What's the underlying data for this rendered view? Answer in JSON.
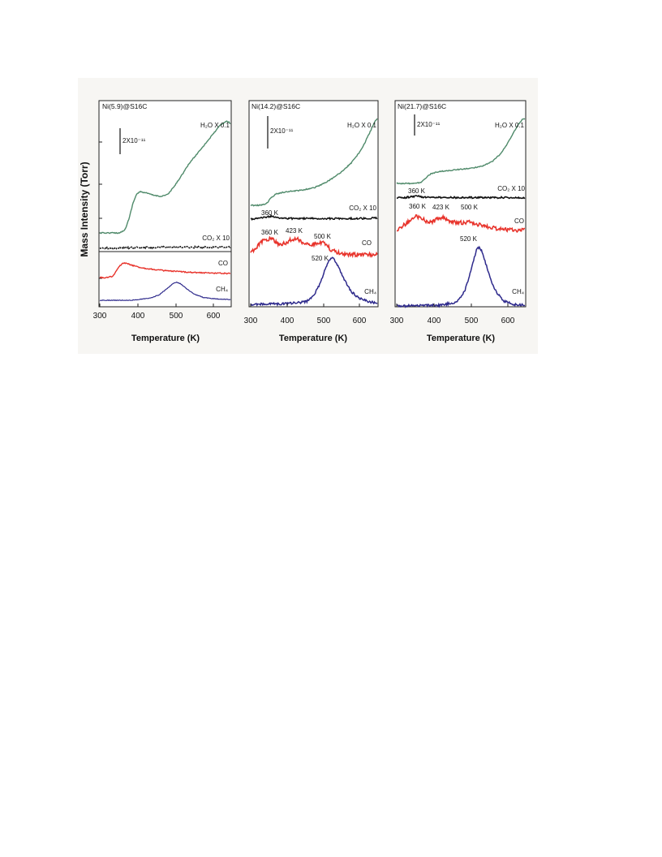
{
  "figure": {
    "ylabel": "Mass Intensity  (Torr)",
    "background": "#f7f6f3"
  },
  "chart_data": [
    {
      "type": "line",
      "title": "Ni(5.9)@S16C",
      "xlabel": "Temperature (K)",
      "xlim": [
        300,
        640
      ],
      "xticks": [
        "300",
        "400",
        "500",
        "600"
      ],
      "scalebar": "2X10⁻¹¹",
      "series": [
        {
          "name": "H₂O X 0.1",
          "color": "#4f8a6a",
          "x": [
            300,
            330,
            352,
            366,
            376,
            386,
            396,
            405,
            420,
            440,
            460,
            478,
            495,
            515,
            535,
            555,
            575,
            595,
            612,
            625,
            632,
            640
          ],
          "y": [
            0,
            0,
            0,
            0.3,
            1.2,
            2.5,
            3.3,
            3.5,
            3.4,
            3.2,
            3.1,
            3.3,
            4.0,
            5.0,
            6.0,
            6.8,
            7.6,
            8.4,
            9.1,
            9.4,
            9.5,
            9.3
          ]
        },
        {
          "name": "CO₂ X 10",
          "color": "#111111",
          "x": [
            300,
            350,
            400,
            450,
            500,
            550,
            600,
            640
          ],
          "y": [
            0,
            0.05,
            0.1,
            0.15,
            0.15,
            0.15,
            0.15,
            0.15
          ]
        },
        {
          "name": "CO",
          "color": "#e8342c",
          "x": [
            300,
            320,
            335,
            348,
            358,
            366,
            378,
            392,
            410,
            440,
            480,
            520,
            560,
            600,
            640
          ],
          "y": [
            0,
            0,
            0.2,
            1.2,
            1.7,
            1.8,
            1.6,
            1.4,
            1.2,
            1.0,
            0.8,
            0.7,
            0.6,
            0.55,
            0.5
          ]
        },
        {
          "name": "CH₄",
          "color": "#2e2a8c",
          "x": [
            300,
            380,
            430,
            455,
            475,
            490,
            500,
            510,
            525,
            545,
            570,
            600,
            640
          ],
          "y": [
            0,
            0,
            0.15,
            0.4,
            0.85,
            1.2,
            1.3,
            1.2,
            0.85,
            0.45,
            0.2,
            0.1,
            0.05
          ]
        }
      ],
      "annotations": []
    },
    {
      "type": "line",
      "title": "Ni(14.2)@S16C",
      "xlabel": "Temperature (K)",
      "xlim": [
        300,
        640
      ],
      "xticks": [
        "300",
        "400",
        "500",
        "600"
      ],
      "scalebar": "2X10⁻¹¹",
      "series": [
        {
          "name": "H₂O X 0.1",
          "color": "#4f8a6a",
          "x": [
            300,
            320,
            335,
            345,
            355,
            368,
            385,
            410,
            440,
            470,
            500,
            525,
            550,
            570,
            590,
            605,
            620,
            632,
            640
          ],
          "y": [
            0,
            0,
            0.05,
            0.25,
            0.65,
            0.95,
            1.1,
            1.2,
            1.3,
            1.5,
            1.9,
            2.4,
            3.0,
            3.6,
            4.4,
            5.2,
            6.2,
            7.0,
            7.4
          ]
        },
        {
          "name": "CO₂ X 10",
          "color": "#111111",
          "x": [
            300,
            340,
            355,
            370,
            400,
            450,
            500,
            550,
            600,
            640
          ],
          "y": [
            0,
            0.15,
            0.25,
            0.12,
            0.05,
            0.05,
            0.05,
            0.05,
            0.05,
            0.1
          ]
        },
        {
          "name": "CO",
          "color": "#e8342c",
          "x": [
            300,
            315,
            335,
            355,
            375,
            395,
            410,
            425,
            445,
            465,
            485,
            500,
            515,
            535,
            560,
            600,
            640
          ],
          "y": [
            0.1,
            0.6,
            1.1,
            1.3,
            0.8,
            0.9,
            1.2,
            1.2,
            0.9,
            0.8,
            0.95,
            0.9,
            0.4,
            0.15,
            0.05,
            0,
            0
          ]
        },
        {
          "name": "CH₄",
          "color": "#2e2a8c",
          "x": [
            300,
            400,
            450,
            470,
            488,
            500,
            510,
            518,
            526,
            540,
            555,
            570,
            590,
            615,
            640
          ],
          "y": [
            0,
            0.05,
            0.2,
            0.7,
            1.7,
            2.7,
            3.4,
            3.6,
            3.4,
            2.6,
            1.7,
            1.0,
            0.5,
            0.2,
            0.1
          ]
        }
      ],
      "annotations": [
        "360 K",
        "360 K",
        "423 K",
        "500 K",
        "520 K"
      ]
    },
    {
      "type": "line",
      "title": "Ni(21.7)@S16C",
      "xlabel": "Temperature (K)",
      "xlim": [
        300,
        640
      ],
      "xticks": [
        "300",
        "400",
        "500",
        "600"
      ],
      "scalebar": "2X10⁻¹¹",
      "series": [
        {
          "name": "H₂O X 0.1",
          "color": "#4f8a6a",
          "x": [
            300,
            350,
            365,
            378,
            390,
            410,
            440,
            470,
            500,
            530,
            555,
            575,
            592,
            608,
            622,
            632,
            640
          ],
          "y": [
            0,
            0,
            0.1,
            0.5,
            0.8,
            1.0,
            1.1,
            1.2,
            1.3,
            1.5,
            1.9,
            2.5,
            3.3,
            4.2,
            5.0,
            5.4,
            5.5
          ]
        },
        {
          "name": "CO₂ X 10",
          "color": "#111111",
          "x": [
            300,
            335,
            355,
            370,
            400,
            450,
            500,
            550,
            600,
            640
          ],
          "y": [
            0,
            0.1,
            0.2,
            0.1,
            0.05,
            0.05,
            0.05,
            0.05,
            0.05,
            0.05
          ]
        },
        {
          "name": "CO",
          "color": "#e8342c",
          "x": [
            300,
            315,
            335,
            352,
            368,
            385,
            400,
            415,
            425,
            440,
            460,
            480,
            495,
            510,
            530,
            560,
            600,
            640
          ],
          "y": [
            0.3,
            0.8,
            1.3,
            1.7,
            1.5,
            1.1,
            1.3,
            1.6,
            1.6,
            1.3,
            1.1,
            1.15,
            1.2,
            1.0,
            0.8,
            0.6,
            0.45,
            0.4
          ]
        },
        {
          "name": "CH₄",
          "color": "#2e2a8c",
          "x": [
            300,
            420,
            460,
            480,
            495,
            505,
            512,
            518,
            525,
            535,
            548,
            565,
            585,
            610,
            640
          ],
          "y": [
            0,
            0.05,
            0.25,
            0.9,
            2.0,
            2.9,
            3.5,
            3.6,
            3.4,
            2.7,
            1.7,
            0.8,
            0.3,
            0.1,
            0.05
          ]
        }
      ],
      "annotations": [
        "360 K",
        "360 K",
        "423 K",
        "500 K",
        "520 K"
      ]
    }
  ]
}
